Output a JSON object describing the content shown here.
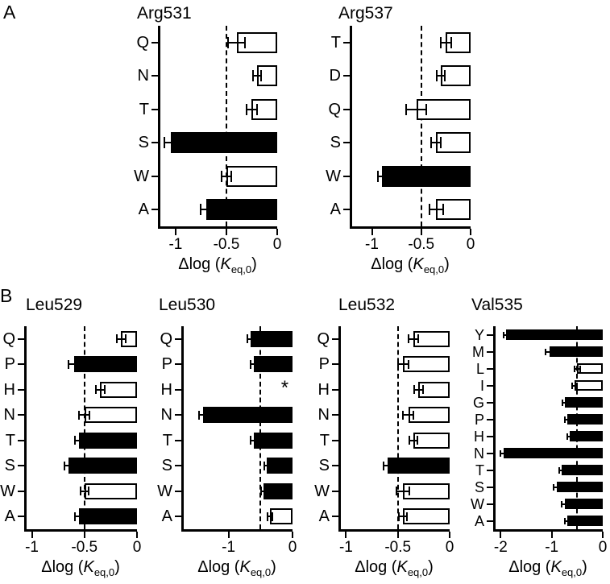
{
  "figure": {
    "panel_a_label": "A",
    "panel_b_label": "B"
  },
  "axis": {
    "xlabel_prefix": "Δlog (",
    "xlabel_k": "K",
    "xlabel_sub": "eq,0",
    "xlabel_suffix": ")"
  },
  "colors": {
    "bar_filled": "#000000",
    "bar_open": "#ffffff",
    "axis": "#000000"
  },
  "chart_data": [
    {
      "id": "arg531",
      "type": "bar",
      "orientation": "horizontal",
      "panel": "A",
      "title": "Arg531",
      "xlabel": "Δlog (K_eq,0)",
      "categories": [
        "Q",
        "N",
        "T",
        "S",
        "W",
        "A"
      ],
      "values": [
        -0.4,
        -0.2,
        -0.25,
        -1.05,
        -0.5,
        -0.7
      ],
      "errors": [
        0.08,
        0.04,
        0.05,
        0.06,
        0.05,
        0.05
      ],
      "filled": [
        false,
        false,
        false,
        true,
        false,
        true
      ],
      "xlim": [
        -1.15,
        0
      ],
      "xticks": [
        -1,
        -0.5,
        0
      ],
      "xtick_labels": [
        "-1",
        "-0.5",
        "0"
      ],
      "dashed_reference_x": -0.5
    },
    {
      "id": "arg537",
      "type": "bar",
      "orientation": "horizontal",
      "panel": "A",
      "title": "Arg537",
      "xlabel": "Δlog (K_eq,0)",
      "categories": [
        "T",
        "D",
        "Q",
        "S",
        "W",
        "A"
      ],
      "values": [
        -0.25,
        -0.3,
        -0.55,
        -0.35,
        -0.9,
        -0.35
      ],
      "errors": [
        0.05,
        0.04,
        0.1,
        0.05,
        0.04,
        0.07
      ],
      "filled": [
        false,
        false,
        false,
        false,
        true,
        false
      ],
      "xlim": [
        -1.2,
        0
      ],
      "xticks": [
        -1,
        -0.5,
        0
      ],
      "xtick_labels": [
        "-1",
        "-0.5",
        "0"
      ],
      "dashed_reference_x": -0.5
    },
    {
      "id": "leu529",
      "type": "bar",
      "orientation": "horizontal",
      "panel": "B",
      "title": "Leu529",
      "xlabel": "Δlog (K_eq,0)",
      "categories": [
        "Q",
        "P",
        "H",
        "N",
        "T",
        "S",
        "W",
        "A"
      ],
      "values": [
        -0.15,
        -0.6,
        -0.35,
        -0.5,
        -0.55,
        -0.65,
        -0.5,
        -0.55
      ],
      "errors": [
        0.04,
        0.05,
        0.04,
        0.05,
        0.04,
        0.04,
        0.04,
        0.04
      ],
      "filled": [
        false,
        true,
        false,
        false,
        true,
        true,
        false,
        true
      ],
      "xlim": [
        -1.05,
        0
      ],
      "xticks": [
        -1,
        -0.5,
        0
      ],
      "xtick_labels": [
        "-1",
        "-0.5",
        "0"
      ],
      "dashed_reference_x": -0.5
    },
    {
      "id": "leu530",
      "type": "bar",
      "orientation": "horizontal",
      "panel": "B",
      "title": "Leu530",
      "xlabel": "Δlog (K_eq,0)",
      "categories": [
        "Q",
        "P",
        "H",
        "N",
        "T",
        "S",
        "W",
        "A"
      ],
      "values": [
        -0.65,
        -0.6,
        null,
        -1.4,
        -0.6,
        -0.4,
        -0.45,
        -0.35
      ],
      "errors": [
        0.05,
        0.05,
        null,
        0.06,
        0.05,
        0.04,
        0.04,
        0.04
      ],
      "filled": [
        true,
        true,
        false,
        true,
        true,
        true,
        true,
        false
      ],
      "xlim": [
        -1.7,
        0
      ],
      "xticks": [
        -1,
        0
      ],
      "xtick_labels": [
        "-1",
        "0"
      ],
      "dashed_reference_x": -0.5,
      "annotations": [
        {
          "category": "H",
          "text": "*",
          "x": -0.12
        }
      ]
    },
    {
      "id": "leu532",
      "type": "bar",
      "orientation": "horizontal",
      "panel": "B",
      "title": "Leu532",
      "xlabel": "Δlog (K_eq,0)",
      "categories": [
        "Q",
        "P",
        "H",
        "N",
        "T",
        "S",
        "W",
        "A"
      ],
      "values": [
        -0.35,
        -0.45,
        -0.3,
        -0.4,
        -0.35,
        -0.6,
        -0.45,
        -0.45
      ],
      "errors": [
        0.05,
        0.05,
        0.04,
        0.05,
        0.04,
        0.04,
        0.06,
        0.04
      ],
      "filled": [
        false,
        false,
        false,
        false,
        false,
        true,
        false,
        false
      ],
      "xlim": [
        -1.05,
        0
      ],
      "xticks": [
        -1,
        -0.5,
        0
      ],
      "xtick_labels": [
        "-1",
        "-0.5",
        "0"
      ],
      "dashed_reference_x": -0.5
    },
    {
      "id": "val535",
      "type": "bar",
      "orientation": "horizontal",
      "panel": "B",
      "title": "Val535",
      "xlabel": "Δlog (K_eq,0)",
      "categories": [
        "Y",
        "M",
        "L",
        "I",
        "G",
        "P",
        "H",
        "N",
        "T",
        "S",
        "W",
        "A"
      ],
      "values": [
        -1.9,
        -1.05,
        -0.5,
        -0.55,
        -0.75,
        -0.7,
        -0.65,
        -1.95,
        -0.8,
        -0.9,
        -0.75,
        -0.7
      ],
      "errors": [
        0.05,
        0.07,
        0.05,
        0.05,
        0.04,
        0.04,
        0.04,
        0.05,
        0.05,
        0.06,
        0.05,
        0.04
      ],
      "filled": [
        true,
        true,
        false,
        false,
        true,
        true,
        true,
        true,
        true,
        true,
        true,
        true
      ],
      "xlim": [
        -2.1,
        0
      ],
      "xticks": [
        -2,
        -1,
        0
      ],
      "xtick_labels": [
        "-2",
        "-1",
        "0"
      ],
      "dashed_reference_x": -0.5
    }
  ]
}
